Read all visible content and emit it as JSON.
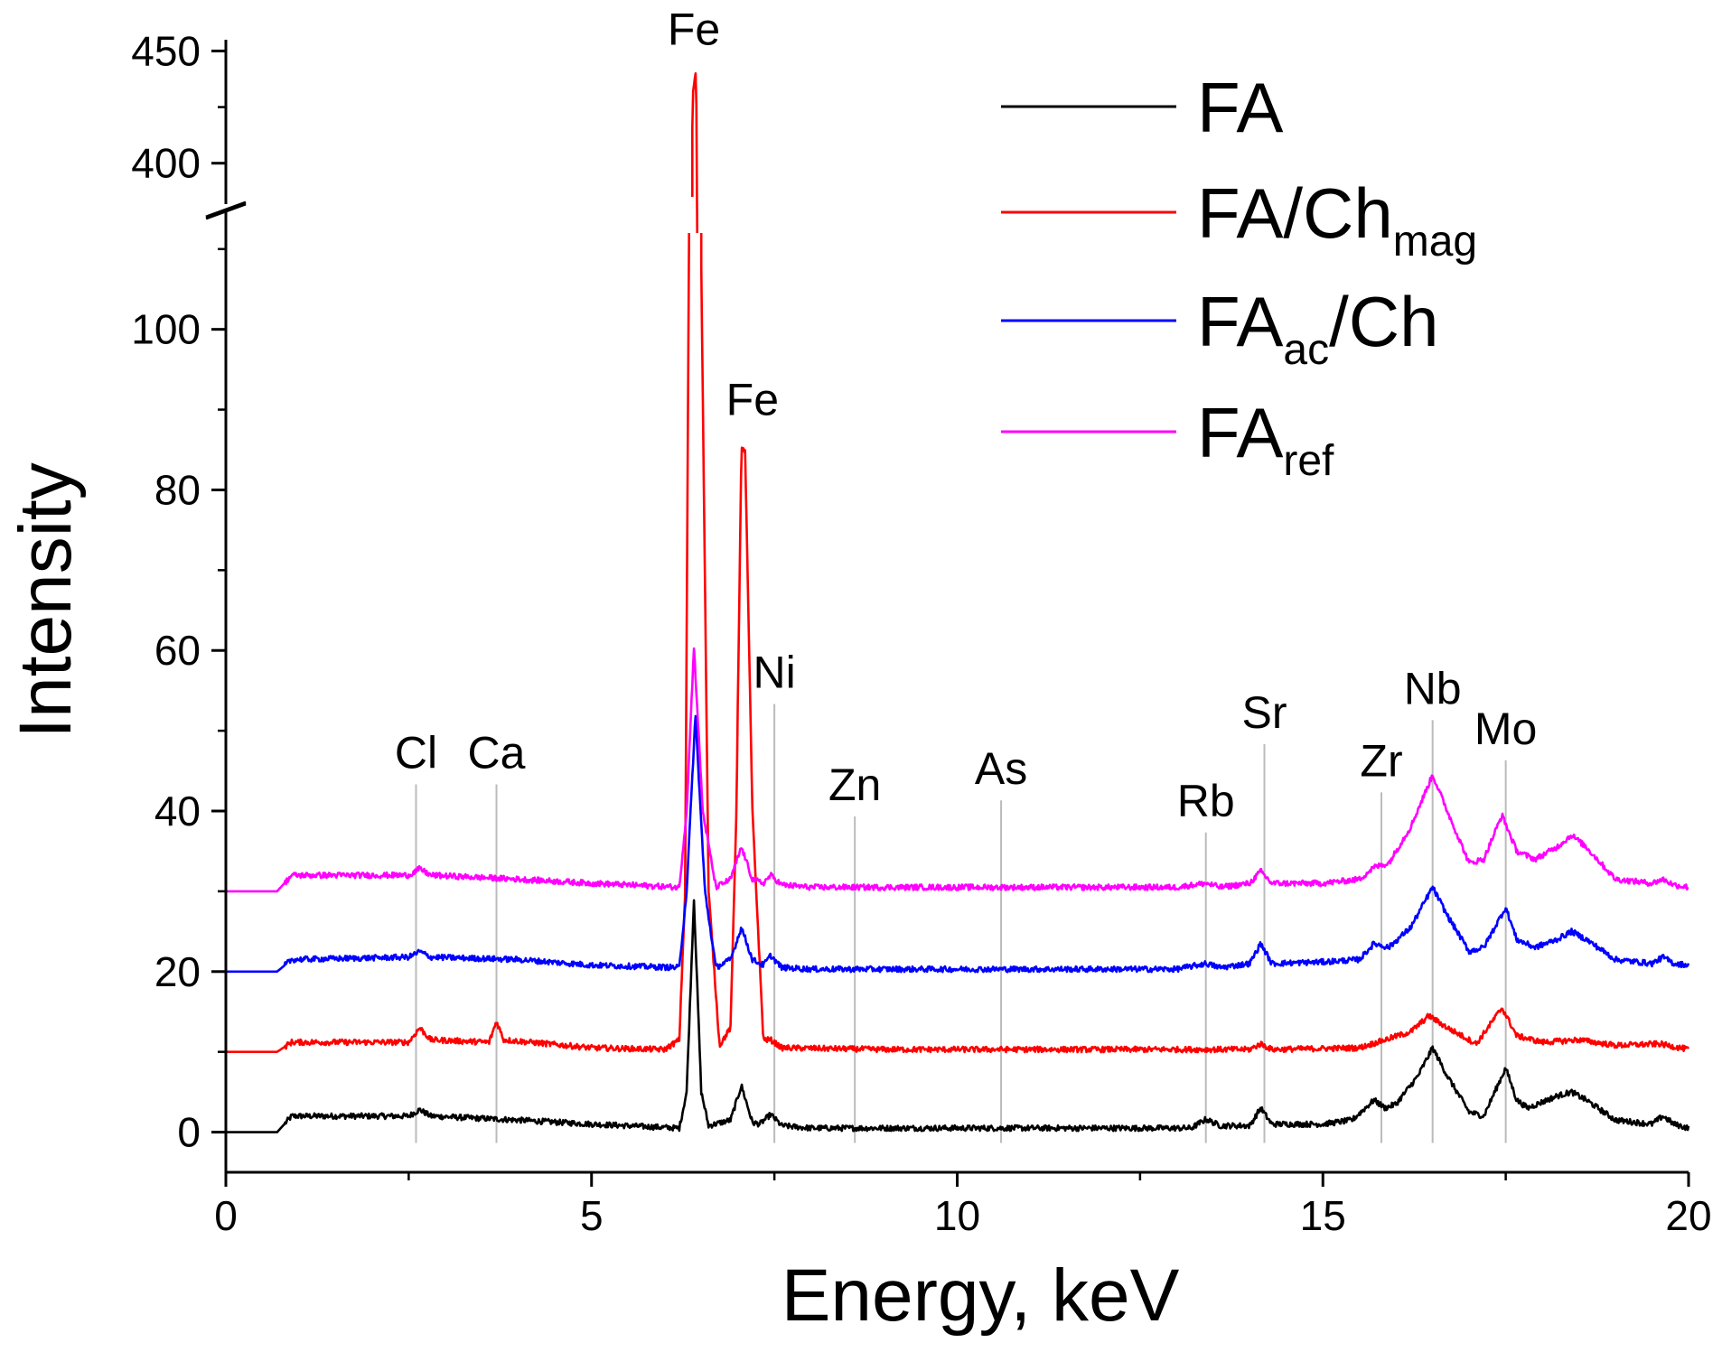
{
  "chart_data": {
    "type": "line",
    "title": "",
    "xlabel": "Energy, keV",
    "ylabel": "Intensity",
    "xlim": [
      0,
      20
    ],
    "ylim_lower": [
      -5,
      112
    ],
    "ylim_upper": [
      385,
      455
    ],
    "axis_break": [
      112,
      385
    ],
    "x_ticks": [
      0,
      5,
      10,
      15,
      20
    ],
    "x_tick_labels": [
      "0",
      "5",
      "10",
      "15",
      "20"
    ],
    "y_ticks": [
      0,
      20,
      40,
      60,
      80,
      100,
      400,
      450
    ],
    "y_tick_labels": [
      "0",
      "20",
      "40",
      "60",
      "80",
      "100",
      "400",
      "450"
    ],
    "legend_position": "top-right",
    "legend": [
      {
        "name": "FA",
        "sub": "",
        "suffix": "",
        "color": "#000000"
      },
      {
        "name": "FA/Ch",
        "sub": "mag",
        "suffix": "",
        "color": "#ff0000"
      },
      {
        "name": "FA",
        "sub": "ac",
        "suffix": "/Ch",
        "color": "#0000ff"
      },
      {
        "name": "FA",
        "sub": "ref",
        "suffix": "",
        "color": "#ff00ff"
      }
    ],
    "series": [
      {
        "name": "FA",
        "color": "#000000",
        "offset": 0,
        "points": [
          [
            0,
            0
          ],
          [
            0.7,
            0
          ],
          [
            0.9,
            2
          ],
          [
            2.5,
            2
          ],
          [
            2.65,
            2.8
          ],
          [
            2.8,
            2
          ],
          [
            4,
            1.5
          ],
          [
            5,
            1
          ],
          [
            6.2,
            0.5
          ],
          [
            6.3,
            5
          ],
          [
            6.4,
            29
          ],
          [
            6.5,
            5
          ],
          [
            6.6,
            0.8
          ],
          [
            6.9,
            1.5
          ],
          [
            7.05,
            5.8
          ],
          [
            7.2,
            1.2
          ],
          [
            7.3,
            1
          ],
          [
            7.45,
            2.2
          ],
          [
            7.6,
            0.8
          ],
          [
            8,
            0.5
          ],
          [
            10,
            0.5
          ],
          [
            13.2,
            0.5
          ],
          [
            13.4,
            1.6
          ],
          [
            13.6,
            0.8
          ],
          [
            14,
            0.8
          ],
          [
            14.15,
            3
          ],
          [
            14.3,
            1
          ],
          [
            15,
            1
          ],
          [
            15.4,
            1.5
          ],
          [
            15.7,
            4
          ],
          [
            15.85,
            3
          ],
          [
            16,
            3.5
          ],
          [
            16.3,
            7
          ],
          [
            16.5,
            10.5
          ],
          [
            16.7,
            7
          ],
          [
            17,
            2.5
          ],
          [
            17.2,
            2
          ],
          [
            17.5,
            8
          ],
          [
            17.65,
            4
          ],
          [
            17.8,
            3
          ],
          [
            18.2,
            4.5
          ],
          [
            18.4,
            5
          ],
          [
            18.6,
            4
          ],
          [
            19,
            1.5
          ],
          [
            19.5,
            1
          ],
          [
            19.65,
            2
          ],
          [
            19.8,
            1
          ],
          [
            20,
            0.5
          ]
        ]
      },
      {
        "name": "FA/Chmag",
        "color": "#ff0000",
        "offset": 10,
        "points": [
          [
            0,
            0
          ],
          [
            0.7,
            0
          ],
          [
            0.9,
            1.2
          ],
          [
            2.5,
            1.2
          ],
          [
            2.65,
            3
          ],
          [
            2.8,
            1.5
          ],
          [
            3.6,
            1.2
          ],
          [
            3.7,
            3.8
          ],
          [
            3.8,
            1.5
          ],
          [
            5,
            0.5
          ],
          [
            6,
            0.3
          ],
          [
            6.2,
            1.5
          ],
          [
            6.28,
            20
          ],
          [
            6.33,
            98
          ],
          [
            6.38,
            420
          ],
          [
            6.43,
            432
          ],
          [
            6.5,
            98
          ],
          [
            6.6,
            20
          ],
          [
            6.75,
            0.8
          ],
          [
            6.9,
            3
          ],
          [
            6.98,
            30
          ],
          [
            7.05,
            75
          ],
          [
            7.1,
            75
          ],
          [
            7.2,
            30
          ],
          [
            7.35,
            1.5
          ],
          [
            7.45,
            1.5
          ],
          [
            7.6,
            0.5
          ],
          [
            9,
            0.3
          ],
          [
            14,
            0.3
          ],
          [
            14.15,
            1
          ],
          [
            14.3,
            0.3
          ],
          [
            15.5,
            0.5
          ],
          [
            16.2,
            2.5
          ],
          [
            16.45,
            4.5
          ],
          [
            16.7,
            3
          ],
          [
            17.1,
            1
          ],
          [
            17.45,
            5.5
          ],
          [
            17.65,
            2
          ],
          [
            18,
            1.2
          ],
          [
            18.5,
            1.5
          ],
          [
            19,
            0.8
          ],
          [
            19.6,
            1
          ],
          [
            20,
            0.3
          ]
        ]
      },
      {
        "name": "FAac/Ch",
        "color": "#0000ff",
        "offset": 20,
        "points": [
          [
            0,
            0
          ],
          [
            0.7,
            0
          ],
          [
            0.9,
            1.5
          ],
          [
            2.5,
            1.8
          ],
          [
            2.65,
            2.5
          ],
          [
            2.8,
            1.8
          ],
          [
            4,
            1.5
          ],
          [
            5,
            0.8
          ],
          [
            6.2,
            0.5
          ],
          [
            6.3,
            10
          ],
          [
            6.42,
            32
          ],
          [
            6.55,
            10
          ],
          [
            6.7,
            0.5
          ],
          [
            6.9,
            1.5
          ],
          [
            7.05,
            5.5
          ],
          [
            7.2,
            1.5
          ],
          [
            7.35,
            0.8
          ],
          [
            7.45,
            2
          ],
          [
            7.6,
            0.5
          ],
          [
            8,
            0.3
          ],
          [
            13,
            0.3
          ],
          [
            13.4,
            1
          ],
          [
            13.6,
            0.5
          ],
          [
            14,
            1
          ],
          [
            14.15,
            3.5
          ],
          [
            14.3,
            1
          ],
          [
            15,
            1.2
          ],
          [
            15.5,
            1.5
          ],
          [
            15.7,
            3.5
          ],
          [
            15.9,
            3
          ],
          [
            16.2,
            5.5
          ],
          [
            16.5,
            10.5
          ],
          [
            16.7,
            7
          ],
          [
            17,
            2.5
          ],
          [
            17.2,
            3
          ],
          [
            17.5,
            8
          ],
          [
            17.65,
            4
          ],
          [
            17.9,
            3
          ],
          [
            18.2,
            4
          ],
          [
            18.4,
            5
          ],
          [
            18.6,
            4
          ],
          [
            19,
            1.5
          ],
          [
            19.5,
            1
          ],
          [
            19.65,
            1.8
          ],
          [
            19.8,
            1
          ],
          [
            20,
            0.8
          ]
        ]
      },
      {
        "name": "FAref",
        "color": "#ff00ff",
        "offset": 30,
        "points": [
          [
            0,
            0
          ],
          [
            0.7,
            0
          ],
          [
            0.9,
            2
          ],
          [
            2.5,
            2
          ],
          [
            2.65,
            2.8
          ],
          [
            2.8,
            2
          ],
          [
            4,
            1.5
          ],
          [
            5,
            1
          ],
          [
            6.2,
            0.5
          ],
          [
            6.3,
            10
          ],
          [
            6.4,
            30.5
          ],
          [
            6.52,
            10
          ],
          [
            6.7,
            0.5
          ],
          [
            6.9,
            1.5
          ],
          [
            7.05,
            5.5
          ],
          [
            7.2,
            1.5
          ],
          [
            7.35,
            1
          ],
          [
            7.45,
            2
          ],
          [
            7.6,
            0.8
          ],
          [
            8,
            0.5
          ],
          [
            13,
            0.5
          ],
          [
            13.4,
            1
          ],
          [
            13.6,
            0.5
          ],
          [
            14,
            1
          ],
          [
            14.15,
            2.5
          ],
          [
            14.3,
            1
          ],
          [
            15,
            1
          ],
          [
            15.5,
            1.5
          ],
          [
            15.7,
            3
          ],
          [
            15.9,
            3.5
          ],
          [
            16.2,
            8
          ],
          [
            16.5,
            14.5
          ],
          [
            16.7,
            10
          ],
          [
            17,
            3.5
          ],
          [
            17.2,
            4
          ],
          [
            17.45,
            9.5
          ],
          [
            17.65,
            5
          ],
          [
            17.9,
            4
          ],
          [
            18.2,
            5.5
          ],
          [
            18.4,
            7
          ],
          [
            18.6,
            5.5
          ],
          [
            19,
            1.5
          ],
          [
            19.5,
            1
          ],
          [
            19.65,
            1.5
          ],
          [
            19.8,
            0.8
          ],
          [
            20,
            0.5
          ]
        ]
      }
    ],
    "annotations": [
      {
        "label": "Fe",
        "x": 6.4,
        "y": 448,
        "line": false
      },
      {
        "label": "Fe",
        "x": 7.2,
        "y": 88,
        "line": false
      },
      {
        "label": "Cl",
        "x": 2.6,
        "y": 44,
        "line": true
      },
      {
        "label": "Ca",
        "x": 3.7,
        "y": 44,
        "line": true
      },
      {
        "label": "Ni",
        "x": 7.5,
        "y": 54,
        "line": true
      },
      {
        "label": "Zn",
        "x": 8.6,
        "y": 40,
        "line": true
      },
      {
        "label": "As",
        "x": 10.6,
        "y": 42,
        "line": true
      },
      {
        "label": "Rb",
        "x": 13.4,
        "y": 38,
        "line": true
      },
      {
        "label": "Sr",
        "x": 14.2,
        "y": 49,
        "line": true
      },
      {
        "label": "Zr",
        "x": 15.8,
        "y": 43,
        "line": true
      },
      {
        "label": "Nb",
        "x": 16.5,
        "y": 52,
        "line": true
      },
      {
        "label": "Mo",
        "x": 17.5,
        "y": 47,
        "line": true
      }
    ]
  }
}
